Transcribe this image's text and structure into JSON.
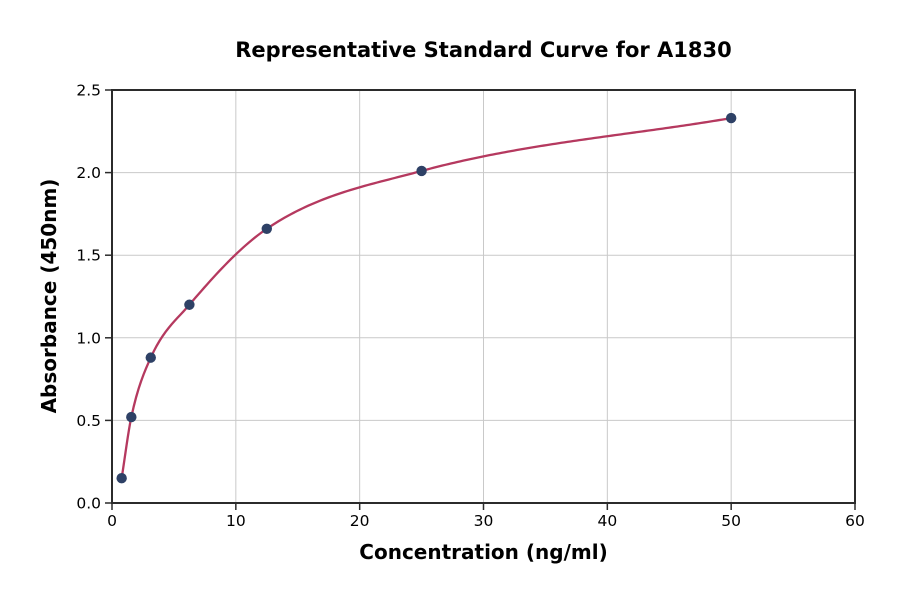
{
  "chart_data": {
    "type": "scatter",
    "title": "Representative Standard Curve for A1830",
    "xlabel": "Concentration (ng/ml)",
    "ylabel": "Absorbance (450nm)",
    "xlim": [
      0,
      60
    ],
    "ylim": [
      0,
      2.5
    ],
    "xticks": [
      0,
      10,
      20,
      30,
      40,
      50,
      60
    ],
    "xtick_labels": [
      "0",
      "10",
      "20",
      "30",
      "40",
      "50",
      "60"
    ],
    "yticks": [
      0,
      0.5,
      1,
      1.5,
      2,
      2.5
    ],
    "ytick_labels": [
      "0.0",
      "0.5",
      "1.0",
      "1.5",
      "2.0",
      "2.5"
    ],
    "grid": true,
    "legend": "none",
    "series": [
      {
        "name": "standards",
        "marker": "circle",
        "fit": "smooth-curve",
        "x": [
          0.78,
          1.56,
          3.13,
          6.25,
          12.5,
          25,
          50
        ],
        "y": [
          0.15,
          0.52,
          0.88,
          1.2,
          1.66,
          2.01,
          2.33
        ]
      }
    ],
    "colors": {
      "curve": "#b5395f",
      "marker": "#2e4166",
      "grid": "#c9c9c9",
      "spine": "#2b2b2b",
      "text": "#000000",
      "background": "#ffffff"
    }
  }
}
